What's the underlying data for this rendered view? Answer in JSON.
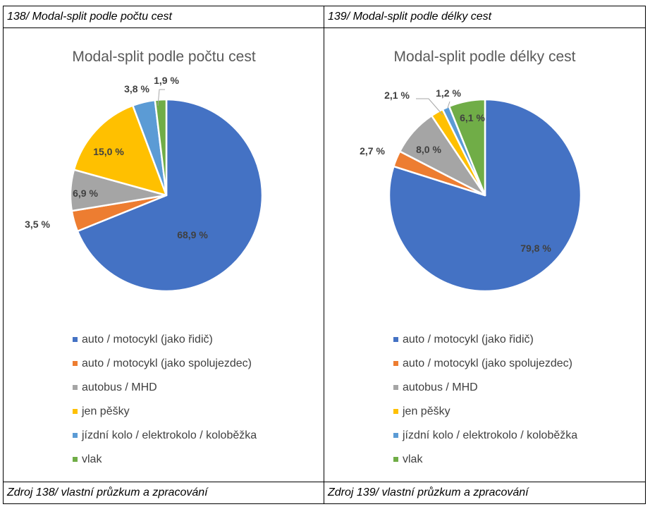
{
  "panels": [
    {
      "caption": "138/ Modal-split podle počtu cest",
      "source": "Zdroj 138/ vlastní průzkum a zpracování"
    },
    {
      "caption": "139/ Modal-split podle délky cest",
      "source": "Zdroj 139/ vlastní průzkum a zpracování"
    }
  ],
  "colors": [
    "#4472C4",
    "#ED7D31",
    "#A5A5A5",
    "#FFC000",
    "#5B9BD5",
    "#70AD47"
  ],
  "chart_data": [
    {
      "type": "pie",
      "title": "Modal-split podle počtu cest",
      "categories": [
        "auto / motocykl (jako řidič)",
        "auto / motocykl (jako spolujezdec)",
        "autobus / MHD",
        "jen pěšky",
        "jízdní kolo / elektrokolo / koloběžka",
        "vlak"
      ],
      "values": [
        68.9,
        3.5,
        6.9,
        15.0,
        3.8,
        1.9
      ],
      "labels": [
        "68,9 %",
        "3,5 %",
        "6,9 %",
        "15,0 %",
        "3,8 %",
        "1,9 %"
      ],
      "legend": "bottom"
    },
    {
      "type": "pie",
      "title": "Modal-split podle délky cest",
      "categories": [
        "auto / motocykl (jako řidič)",
        "auto / motocykl (jako spolujezdec)",
        "autobus / MHD",
        "jen pěšky",
        "jízdní kolo / elektrokolo / koloběžka",
        "vlak"
      ],
      "values": [
        79.8,
        2.7,
        8.0,
        2.1,
        1.2,
        6.1
      ],
      "labels": [
        "79,8 %",
        "2,7 %",
        "8,0 %",
        "2,1 %",
        "1,2 %",
        "6,1 %"
      ],
      "legend": "bottom"
    }
  ]
}
